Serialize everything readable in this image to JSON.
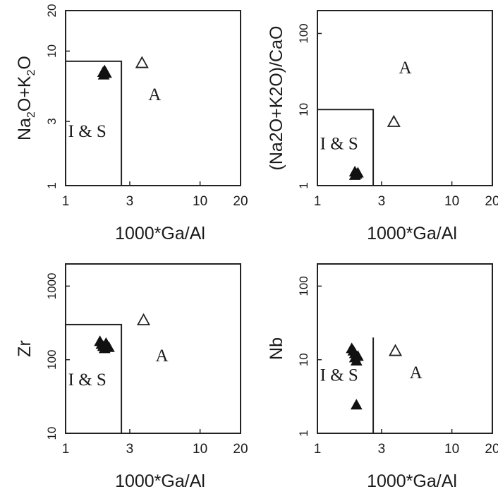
{
  "chart_data": [
    {
      "type": "scatter",
      "xlabel": "1000*Ga/Al",
      "ylabel_parts": [
        "Na",
        "2",
        "O+K",
        "2",
        "O"
      ],
      "xscale": "log",
      "yscale": "log",
      "xlim": [
        1,
        20
      ],
      "ylim": [
        1,
        20
      ],
      "xticks": [
        1,
        3,
        10,
        20
      ],
      "yticks": [
        1,
        3,
        10,
        20
      ],
      "region_labels": [
        "I & S",
        "A"
      ],
      "region_box": {
        "x": [
          1,
          2.6
        ],
        "y": [
          1,
          8.4
        ]
      },
      "series": [
        {
          "style": "filled-triangle",
          "points": [
            [
              1.9,
              6.9
            ],
            [
              1.95,
              7.1
            ],
            [
              2.0,
              6.8
            ],
            [
              1.92,
              6.6
            ]
          ]
        },
        {
          "style": "open-triangle",
          "points": [
            [
              3.7,
              8.1
            ]
          ]
        }
      ]
    },
    {
      "type": "scatter",
      "xlabel": "1000*Ga/Al",
      "ylabel": "(Na2O+K2O)/CaO",
      "xscale": "log",
      "yscale": "log",
      "xlim": [
        1,
        20
      ],
      "ylim": [
        1,
        200
      ],
      "xticks": [
        1,
        3,
        10,
        20
      ],
      "yticks": [
        1,
        10,
        100
      ],
      "region_labels": [
        "I & S",
        "A"
      ],
      "region_box": {
        "x": [
          1,
          2.6
        ],
        "y": [
          1,
          10
        ]
      },
      "series": [
        {
          "style": "filled-triangle",
          "points": [
            [
              1.9,
              1.5
            ],
            [
              2.0,
              1.45
            ],
            [
              1.95,
              1.4
            ],
            [
              1.9,
              1.35
            ]
          ]
        },
        {
          "style": "open-triangle",
          "points": [
            [
              3.7,
              6.8
            ]
          ]
        }
      ]
    },
    {
      "type": "scatter",
      "xlabel": "1000*Ga/Al",
      "ylabel": "Zr",
      "xscale": "log",
      "yscale": "log",
      "xlim": [
        1,
        20
      ],
      "ylim": [
        10,
        2000
      ],
      "xticks": [
        1,
        3,
        10,
        20
      ],
      "yticks": [
        10,
        100,
        1000
      ],
      "region_labels": [
        "I & S",
        "A"
      ],
      "region_box": {
        "x": [
          1,
          2.6
        ],
        "y": [
          10,
          300
        ]
      },
      "series": [
        {
          "style": "filled-triangle",
          "points": [
            [
              1.8,
              175
            ],
            [
              1.85,
              160
            ],
            [
              1.9,
              150
            ],
            [
              1.95,
              140
            ],
            [
              2.0,
              165
            ],
            [
              2.1,
              145
            ]
          ]
        },
        {
          "style": "open-triangle",
          "points": [
            [
              3.8,
              340
            ]
          ]
        }
      ]
    },
    {
      "type": "scatter",
      "xlabel": "1000*Ga/Al",
      "ylabel": "Nb",
      "xscale": "log",
      "yscale": "log",
      "xlim": [
        1,
        20
      ],
      "ylim": [
        1,
        200
      ],
      "xticks": [
        1,
        3,
        10,
        20
      ],
      "yticks": [
        1,
        10,
        100
      ],
      "region_labels": [
        "I & S",
        "A"
      ],
      "region_line": {
        "x": 2.6,
        "y": [
          1,
          20
        ]
      },
      "series": [
        {
          "style": "filled-triangle",
          "points": [
            [
              1.8,
              14
            ],
            [
              1.85,
              13
            ],
            [
              1.9,
              12
            ],
            [
              1.9,
              10.5
            ],
            [
              2.0,
              11
            ],
            [
              1.95,
              9.5
            ],
            [
              1.95,
              2.4
            ]
          ]
        },
        {
          "style": "open-triangle",
          "points": [
            [
              3.8,
              13
            ]
          ]
        }
      ]
    }
  ]
}
